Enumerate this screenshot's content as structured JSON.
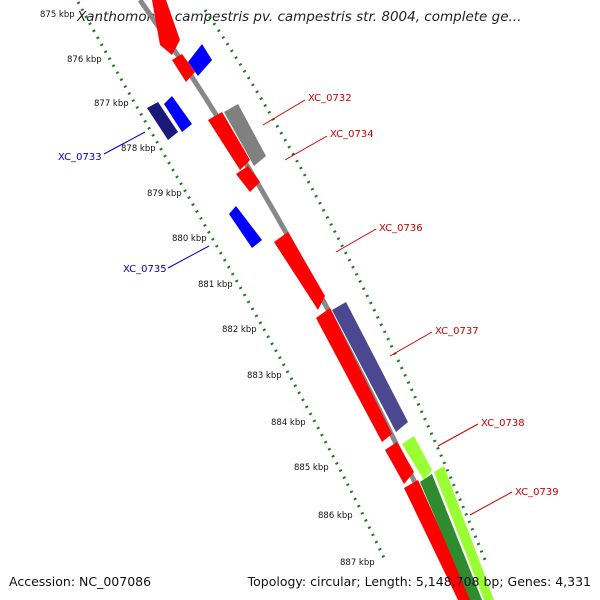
{
  "title": "Xanthomonas campestris pv. campestris str. 8004, complete ge...",
  "footer": {
    "accession": "Accession: NC_007086",
    "summary": "Topology: circular; Length: 5,148,708 bp; Genes: 4,331"
  },
  "kbp_ticks": [
    "875 kbp",
    "876 kbp",
    "877 kbp",
    "878 kbp",
    "879 kbp",
    "880 kbp",
    "881 kbp",
    "882 kbp",
    "883 kbp",
    "884 kbp",
    "885 kbp",
    "886 kbp",
    "887 kbp"
  ],
  "gene_labels_forward": [
    "XC_0732",
    "XC_0734",
    "XC_0736",
    "XC_0737",
    "XC_0738",
    "XC_0739"
  ],
  "gene_labels_reverse": [
    "XC_0733",
    "XC_0735"
  ],
  "colors": {
    "forward_cds": "#ff0000",
    "reverse_cds": "#0000ff",
    "dark_blue": "#4a4890",
    "gray": "#808080",
    "lime": "#99ff33",
    "dark_green": "#2e8b2e",
    "backbone": "#888888",
    "tick": "#1e7d1e",
    "label_forward": "#cc0000",
    "label_reverse": "#0000cc"
  }
}
